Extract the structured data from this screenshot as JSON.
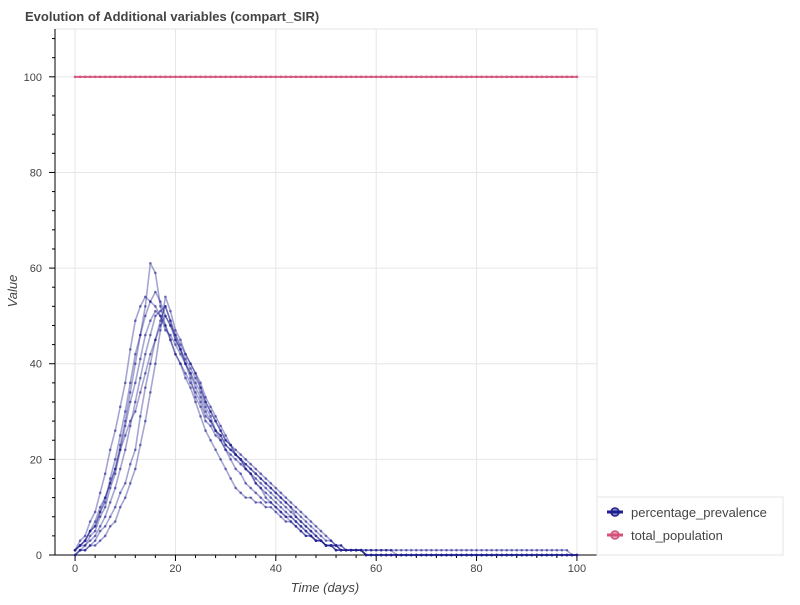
{
  "chart_data": {
    "type": "line",
    "title": "Evolution of Additional variables (compart_SIR)",
    "xlabel": "Time (days)",
    "ylabel": "Value",
    "xlim": [
      -4,
      104
    ],
    "ylim": [
      0,
      110
    ],
    "x_ticks": [
      0,
      20,
      40,
      60,
      80,
      100
    ],
    "y_ticks": [
      0,
      20,
      40,
      60,
      80,
      100
    ],
    "grid": true,
    "legend_position": "bottom-right",
    "legend": [
      {
        "label": "percentage_prevalence",
        "color": "#1f1f8f"
      },
      {
        "label": "total_population",
        "color": "#d4527a"
      }
    ],
    "series": [
      {
        "name": "percentage_prevalence",
        "color": "#1f1f8f",
        "x": [
          0,
          2,
          4,
          6,
          8,
          10,
          12,
          14,
          15,
          16,
          17,
          18,
          20,
          22,
          24,
          26,
          28,
          30,
          32,
          34,
          36,
          38,
          40,
          42,
          44,
          46,
          48,
          50,
          52,
          55,
          60,
          66
        ],
        "values": [
          1,
          3,
          6,
          12,
          18,
          28,
          40,
          52,
          61,
          59,
          52,
          48,
          42,
          37,
          32,
          26,
          22,
          18,
          14,
          12,
          11,
          10,
          9,
          7,
          6,
          4,
          3,
          2,
          1,
          1,
          1,
          0
        ]
      },
      {
        "name": "percentage_prevalence",
        "color": "#1f1f8f",
        "x": [
          0,
          2,
          4,
          6,
          8,
          10,
          12,
          14,
          16,
          18,
          20,
          22,
          24,
          26,
          28,
          30,
          32,
          34,
          36,
          38,
          40,
          42,
          44,
          46,
          48,
          50,
          55,
          60,
          65,
          70,
          75,
          80,
          85,
          90,
          95,
          97,
          100
        ],
        "values": [
          1,
          2,
          4,
          8,
          14,
          22,
          32,
          42,
          50,
          52,
          46,
          40,
          35,
          30,
          26,
          23,
          21,
          19,
          17,
          15,
          13,
          11,
          8,
          6,
          4,
          2,
          1,
          1,
          1,
          1,
          1,
          1,
          1,
          1,
          1,
          1,
          0
        ]
      },
      {
        "name": "percentage_prevalence",
        "color": "#1f1f8f",
        "x": [
          0,
          2,
          4,
          6,
          8,
          10,
          12,
          14,
          16,
          18,
          20,
          22,
          24,
          26,
          28,
          30,
          32,
          34,
          36,
          38,
          40,
          42,
          44,
          46,
          48,
          50,
          52,
          55,
          60
        ],
        "values": [
          1,
          4,
          9,
          17,
          26,
          36,
          49,
          54,
          52,
          47,
          44,
          40,
          33,
          28,
          25,
          22,
          20,
          18,
          16,
          14,
          12,
          10,
          8,
          6,
          4,
          2,
          1,
          1,
          0
        ]
      },
      {
        "name": "percentage_prevalence",
        "color": "#1f1f8f",
        "x": [
          0,
          2,
          4,
          6,
          8,
          10,
          12,
          14,
          16,
          18,
          20,
          22,
          24,
          26,
          28,
          30,
          32,
          34,
          36,
          38,
          40,
          42,
          44,
          46,
          48,
          50,
          55,
          60
        ],
        "values": [
          0,
          2,
          5,
          10,
          17,
          27,
          36,
          46,
          51,
          48,
          42,
          38,
          34,
          29,
          26,
          23,
          21,
          19,
          17,
          15,
          13,
          11,
          9,
          7,
          5,
          3,
          1,
          0
        ]
      },
      {
        "name": "percentage_prevalence",
        "color": "#1f1f8f",
        "x": [
          0,
          2,
          4,
          6,
          8,
          10,
          12,
          14,
          16,
          18,
          20,
          22,
          24,
          26,
          28,
          30,
          32,
          34,
          36,
          38,
          40,
          42,
          44,
          46,
          48,
          50,
          52,
          55,
          60
        ],
        "values": [
          1,
          3,
          7,
          12,
          18,
          25,
          30,
          38,
          45,
          50,
          46,
          42,
          38,
          32,
          28,
          24,
          22,
          20,
          18,
          16,
          14,
          12,
          10,
          8,
          6,
          4,
          2,
          1,
          0
        ]
      },
      {
        "name": "percentage_prevalence",
        "color": "#1f1f8f",
        "x": [
          0,
          2,
          4,
          6,
          8,
          10,
          12,
          14,
          16,
          18,
          20,
          22,
          24,
          26,
          28,
          30,
          32,
          34,
          36,
          38,
          40,
          42,
          44,
          46,
          48,
          50,
          55,
          60
        ],
        "values": [
          0,
          1,
          3,
          6,
          10,
          15,
          22,
          35,
          45,
          52,
          45,
          40,
          36,
          31,
          26,
          22,
          18,
          15,
          13,
          11,
          10,
          8,
          7,
          5,
          3,
          2,
          1,
          0
        ]
      },
      {
        "name": "percentage_prevalence",
        "color": "#1f1f8f",
        "x": [
          0,
          2,
          4,
          6,
          8,
          10,
          12,
          14,
          16,
          18,
          20,
          22,
          24,
          26,
          28,
          30,
          32,
          34,
          36,
          38,
          40,
          42,
          44,
          46,
          48,
          50,
          55,
          60
        ],
        "values": [
          0,
          1,
          2,
          4,
          7,
          12,
          18,
          28,
          40,
          54,
          47,
          42,
          38,
          33,
          29,
          25,
          21,
          18,
          15,
          12,
          10,
          8,
          6,
          4,
          3,
          2,
          1,
          0
        ]
      },
      {
        "name": "percentage_prevalence",
        "color": "#1f1f8f",
        "x": [
          0,
          2,
          4,
          6,
          8,
          10,
          12,
          14,
          16,
          18,
          20,
          22,
          24,
          26,
          28,
          30,
          32,
          34,
          36,
          38,
          40,
          42,
          44,
          46,
          48,
          50,
          52,
          55,
          60
        ],
        "values": [
          1,
          3,
          6,
          11,
          20,
          30,
          42,
          50,
          55,
          50,
          45,
          41,
          37,
          32,
          28,
          24,
          21,
          18,
          15,
          13,
          11,
          9,
          7,
          5,
          3,
          2,
          1,
          1,
          0
        ]
      },
      {
        "name": "total_population",
        "color": "#d4527a",
        "x": [
          0,
          100
        ],
        "values": [
          100,
          100
        ]
      }
    ]
  }
}
